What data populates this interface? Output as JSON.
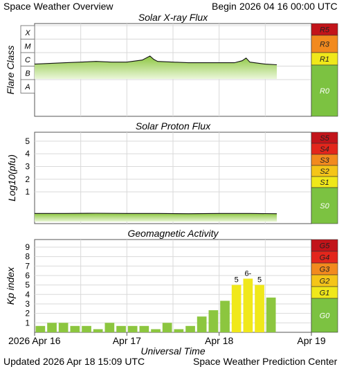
{
  "header": {
    "title": "Space Weather Overview",
    "begin_label": "Begin",
    "begin_time": "2026 04 16 00:00 UTC"
  },
  "footer": {
    "updated_label": "Updated",
    "updated_time": "2026 Apr 18 15:09 UTC",
    "source": "Space Weather Prediction Center"
  },
  "colors": {
    "grid": "#d9d9d9",
    "line": "#111111",
    "green_fill": "#8cc63f",
    "green_light": "#eaf6d8",
    "scale_green": "#7cc241",
    "yellow": "#f0e81a",
    "gold": "#f5c518",
    "orange": "#f28a1e",
    "red_orange": "#ee4a1c",
    "red": "#e3261c",
    "dark_red": "#c2141a"
  },
  "chart_data": [
    {
      "type": "line",
      "title": "Solar X-ray Flux",
      "ylabel": "Flare Class",
      "y_tick_labels": [
        "X",
        "M",
        "C",
        "B",
        "A"
      ],
      "x_unit": "hours since 2026 Apr 16 00:00 UTC",
      "xlim": [
        0,
        72
      ],
      "data_end_hour": 63,
      "y_scale": "log flare class (A=1 ... X=5)",
      "series": [
        {
          "x": [
            0,
            4,
            8,
            12,
            16,
            20,
            24,
            28,
            30,
            31,
            32,
            36,
            40,
            44,
            48,
            52,
            54,
            55,
            56,
            60,
            63
          ],
          "values": [
            2.65,
            2.7,
            2.75,
            2.8,
            2.85,
            2.8,
            2.8,
            2.95,
            3.25,
            3.0,
            2.85,
            2.8,
            2.75,
            2.75,
            2.75,
            2.75,
            2.9,
            3.1,
            2.8,
            2.65,
            2.6
          ]
        }
      ],
      "scale_labels": [
        "R5",
        "R3",
        "R1",
        "R0"
      ]
    },
    {
      "type": "line",
      "title": "Solar Proton Flux",
      "ylabel": "Log10(pfu)",
      "y_tick_labels": [
        "5",
        "4",
        "3",
        "2",
        "1"
      ],
      "xlim": [
        0,
        72
      ],
      "data_end_hour": 63,
      "ylim": [
        -1.5,
        5.7
      ],
      "series": [
        {
          "x": [
            0,
            8,
            16,
            24,
            32,
            40,
            48,
            56,
            63
          ],
          "values": [
            -0.7,
            -0.7,
            -0.68,
            -0.7,
            -0.7,
            -0.72,
            -0.7,
            -0.7,
            -0.72
          ]
        }
      ],
      "scale_labels": [
        "S5",
        "S4",
        "S3",
        "S2",
        "S1",
        "S0"
      ]
    },
    {
      "type": "bar",
      "title": "Geomagnetic Activity",
      "ylabel": "Kp index",
      "xlabel": "Universal Time",
      "x_tick_labels": [
        "2026 Apr 16",
        "Apr 17",
        "Apr 18",
        "Apr 19"
      ],
      "y_tick_labels": [
        "9",
        "8",
        "7",
        "6",
        "5",
        "4",
        "3",
        "2",
        "1"
      ],
      "ylim": [
        0,
        9.8
      ],
      "bar_width_hours": 3,
      "values": [
        0.67,
        1.0,
        1.0,
        0.67,
        0.67,
        0.33,
        1.0,
        0.67,
        0.67,
        0.67,
        0.33,
        1.0,
        0.33,
        0.67,
        1.67,
        2.33,
        3.33,
        5.0,
        5.67,
        5.0,
        3.67
      ],
      "bar_colors": [
        "green",
        "green",
        "green",
        "green",
        "green",
        "green",
        "green",
        "green",
        "green",
        "green",
        "green",
        "green",
        "green",
        "green",
        "green",
        "green",
        "green",
        "yellow",
        "yellow",
        "yellow",
        "green"
      ],
      "data_labels": {
        "17": "5",
        "18": "6-",
        "19": "5"
      },
      "scale_labels": [
        "G5",
        "G4",
        "G3",
        "G2",
        "G1",
        "G0"
      ]
    }
  ]
}
